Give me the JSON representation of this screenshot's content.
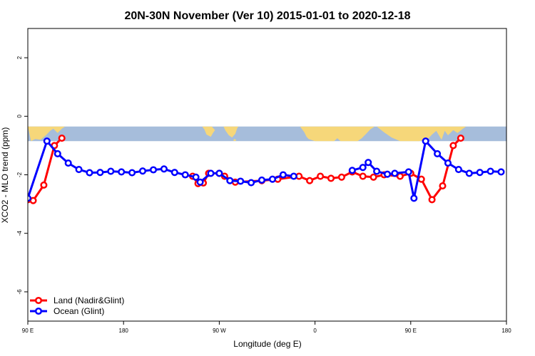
{
  "chart_data": {
    "type": "line",
    "title": "20N-30N November (Ver 10)   2015-01-01 to 2020-12-18",
    "xlabel": "Longitude (deg E)",
    "ylabel": "XCO2 - MLO trend (ppm)",
    "xlim": [
      90,
      540
    ],
    "ylim": [
      -7,
      3
    ],
    "x_ticks": [
      {
        "value": 90,
        "label": "90 E"
      },
      {
        "value": 180,
        "label": "180"
      },
      {
        "value": 270,
        "label": "90 W"
      },
      {
        "value": 360,
        "label": "0"
      },
      {
        "value": 450,
        "label": "90 E"
      },
      {
        "value": 540,
        "label": "180"
      }
    ],
    "y_ticks": [
      {
        "value": 2,
        "label": "2"
      },
      {
        "value": 0,
        "label": "0"
      },
      {
        "value": -2,
        "label": "-2"
      },
      {
        "value": -4,
        "label": "-4"
      },
      {
        "value": -6,
        "label": "-6"
      }
    ],
    "grid": false,
    "legend_position": "bottom-left",
    "map_strip": {
      "y_top": -0.35,
      "y_bottom": -0.85,
      "ocean_color": "#a6bddb",
      "land_color": "#f6d77a"
    },
    "series": [
      {
        "name": "Land (Nadir&Glint)",
        "color": "#ff0000",
        "segments": [
          [
            [
              90,
              -2.85
            ],
            [
              95,
              -2.88
            ],
            [
              105,
              -2.35
            ],
            [
              115,
              -1.0
            ],
            [
              122,
              -0.75
            ]
          ],
          [
            [
              245,
              -2.05
            ],
            [
              250,
              -2.3
            ],
            [
              255,
              -2.28
            ],
            [
              260,
              -1.95
            ],
            [
              270,
              -1.95
            ],
            [
              275,
              -2.05
            ],
            [
              285,
              -2.25
            ],
            [
              310,
              -2.2
            ],
            [
              325,
              -2.15
            ],
            [
              345,
              -2.05
            ],
            [
              355,
              -2.2
            ],
            [
              365,
              -2.05
            ],
            [
              375,
              -2.12
            ],
            [
              385,
              -2.08
            ],
            [
              395,
              -1.9
            ],
            [
              405,
              -2.05
            ],
            [
              415,
              -2.08
            ],
            [
              425,
              -2.0
            ],
            [
              440,
              -2.05
            ],
            [
              450,
              -1.95
            ],
            [
              460,
              -2.15
            ],
            [
              470,
              -2.85
            ],
            [
              480,
              -2.38
            ],
            [
              490,
              -1.0
            ],
            [
              497,
              -0.75
            ]
          ]
        ]
      },
      {
        "name": "Ocean (Glint)",
        "color": "#0000ff",
        "segments": [
          [
            [
              90,
              -2.8
            ],
            [
              108,
              -0.85
            ],
            [
              118,
              -1.28
            ],
            [
              128,
              -1.6
            ],
            [
              138,
              -1.82
            ],
            [
              148,
              -1.93
            ],
            [
              158,
              -1.92
            ],
            [
              168,
              -1.88
            ],
            [
              178,
              -1.9
            ],
            [
              188,
              -1.93
            ],
            [
              198,
              -1.87
            ],
            [
              208,
              -1.83
            ],
            [
              218,
              -1.8
            ],
            [
              228,
              -1.92
            ],
            [
              238,
              -2.0
            ],
            [
              248,
              -2.08
            ],
            [
              252,
              -2.25
            ],
            [
              262,
              -1.95
            ],
            [
              270,
              -1.95
            ],
            [
              280,
              -2.2
            ],
            [
              290,
              -2.22
            ],
            [
              300,
              -2.27
            ],
            [
              310,
              -2.18
            ],
            [
              320,
              -2.15
            ],
            [
              330,
              -2.0
            ],
            [
              340,
              -2.05
            ]
          ],
          [
            [
              395,
              -1.85
            ],
            [
              405,
              -1.75
            ],
            [
              410,
              -1.58
            ],
            [
              418,
              -1.88
            ],
            [
              428,
              -1.98
            ],
            [
              435,
              -1.95
            ],
            [
              448,
              -1.9
            ],
            [
              453,
              -2.8
            ],
            [
              464,
              -0.85
            ],
            [
              475,
              -1.28
            ],
            [
              485,
              -1.6
            ],
            [
              495,
              -1.82
            ],
            [
              505,
              -1.95
            ],
            [
              515,
              -1.92
            ],
            [
              525,
              -1.88
            ],
            [
              535,
              -1.9
            ]
          ]
        ]
      }
    ]
  }
}
